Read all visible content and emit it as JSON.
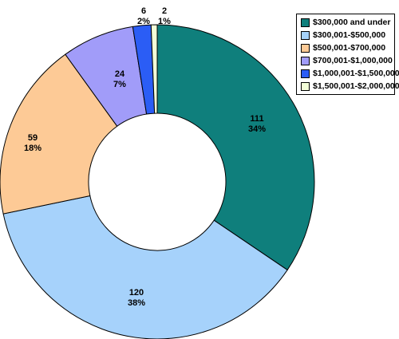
{
  "chart_data": {
    "type": "pie",
    "donut": true,
    "legend_position": "top-right",
    "categories": [
      "$300,000 and under",
      "$300,001-$500,000",
      "$500,001-$700,000",
      "$700,001-$1,000,000",
      "$1,000,001-$1,500,000",
      "$1,500,001-$2,000,000"
    ],
    "values": [
      111,
      120,
      59,
      24,
      6,
      2
    ],
    "percent_labels": [
      "34%",
      "38%",
      "18%",
      "7%",
      "2%",
      "1%"
    ],
    "colors": [
      "#0f7f7c",
      "#a6d2fb",
      "#fdca96",
      "#a19cf9",
      "#2b5df5",
      "#f3ffd8"
    ]
  }
}
